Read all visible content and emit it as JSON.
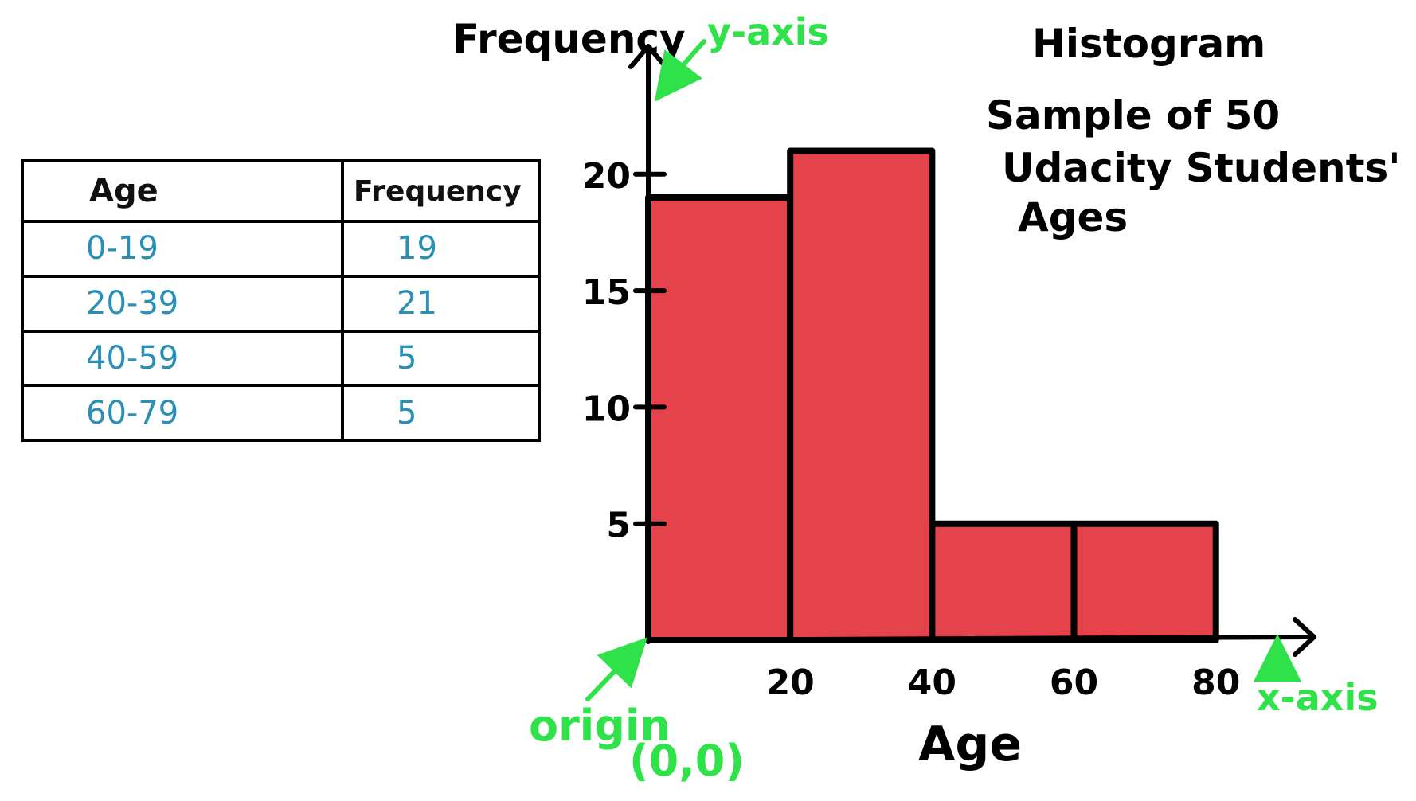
{
  "colors": {
    "bar_fill": "#e4434c",
    "outline": "#000000",
    "annotation": "#2fe24a",
    "table_values": "#2a8fb5"
  },
  "table": {
    "headers": [
      "Age",
      "Frequency"
    ],
    "rows": [
      [
        "0-19",
        "19"
      ],
      [
        "20-39",
        "21"
      ],
      [
        "40-59",
        "5"
      ],
      [
        "60-79",
        "5"
      ]
    ]
  },
  "annotations": {
    "y_axis": "y-axis",
    "x_axis": "x-axis",
    "origin": "origin",
    "origin_coords": "(0,0)"
  },
  "chart_data": {
    "type": "bar",
    "title": "Histogram",
    "subtitle_lines": [
      "Sample of 50",
      "Udacity Students'",
      "Ages"
    ],
    "xlabel": "Age",
    "ylabel": "Frequency",
    "bins": [
      [
        0,
        20
      ],
      [
        20,
        40
      ],
      [
        40,
        60
      ],
      [
        60,
        80
      ]
    ],
    "values": [
      19,
      21,
      5,
      5
    ],
    "xticks": [
      20,
      40,
      60,
      80
    ],
    "yticks": [
      5,
      10,
      15,
      20
    ],
    "xlim": [
      0,
      88
    ],
    "ylim": [
      0,
      23
    ],
    "grid": false,
    "legend": "none"
  }
}
